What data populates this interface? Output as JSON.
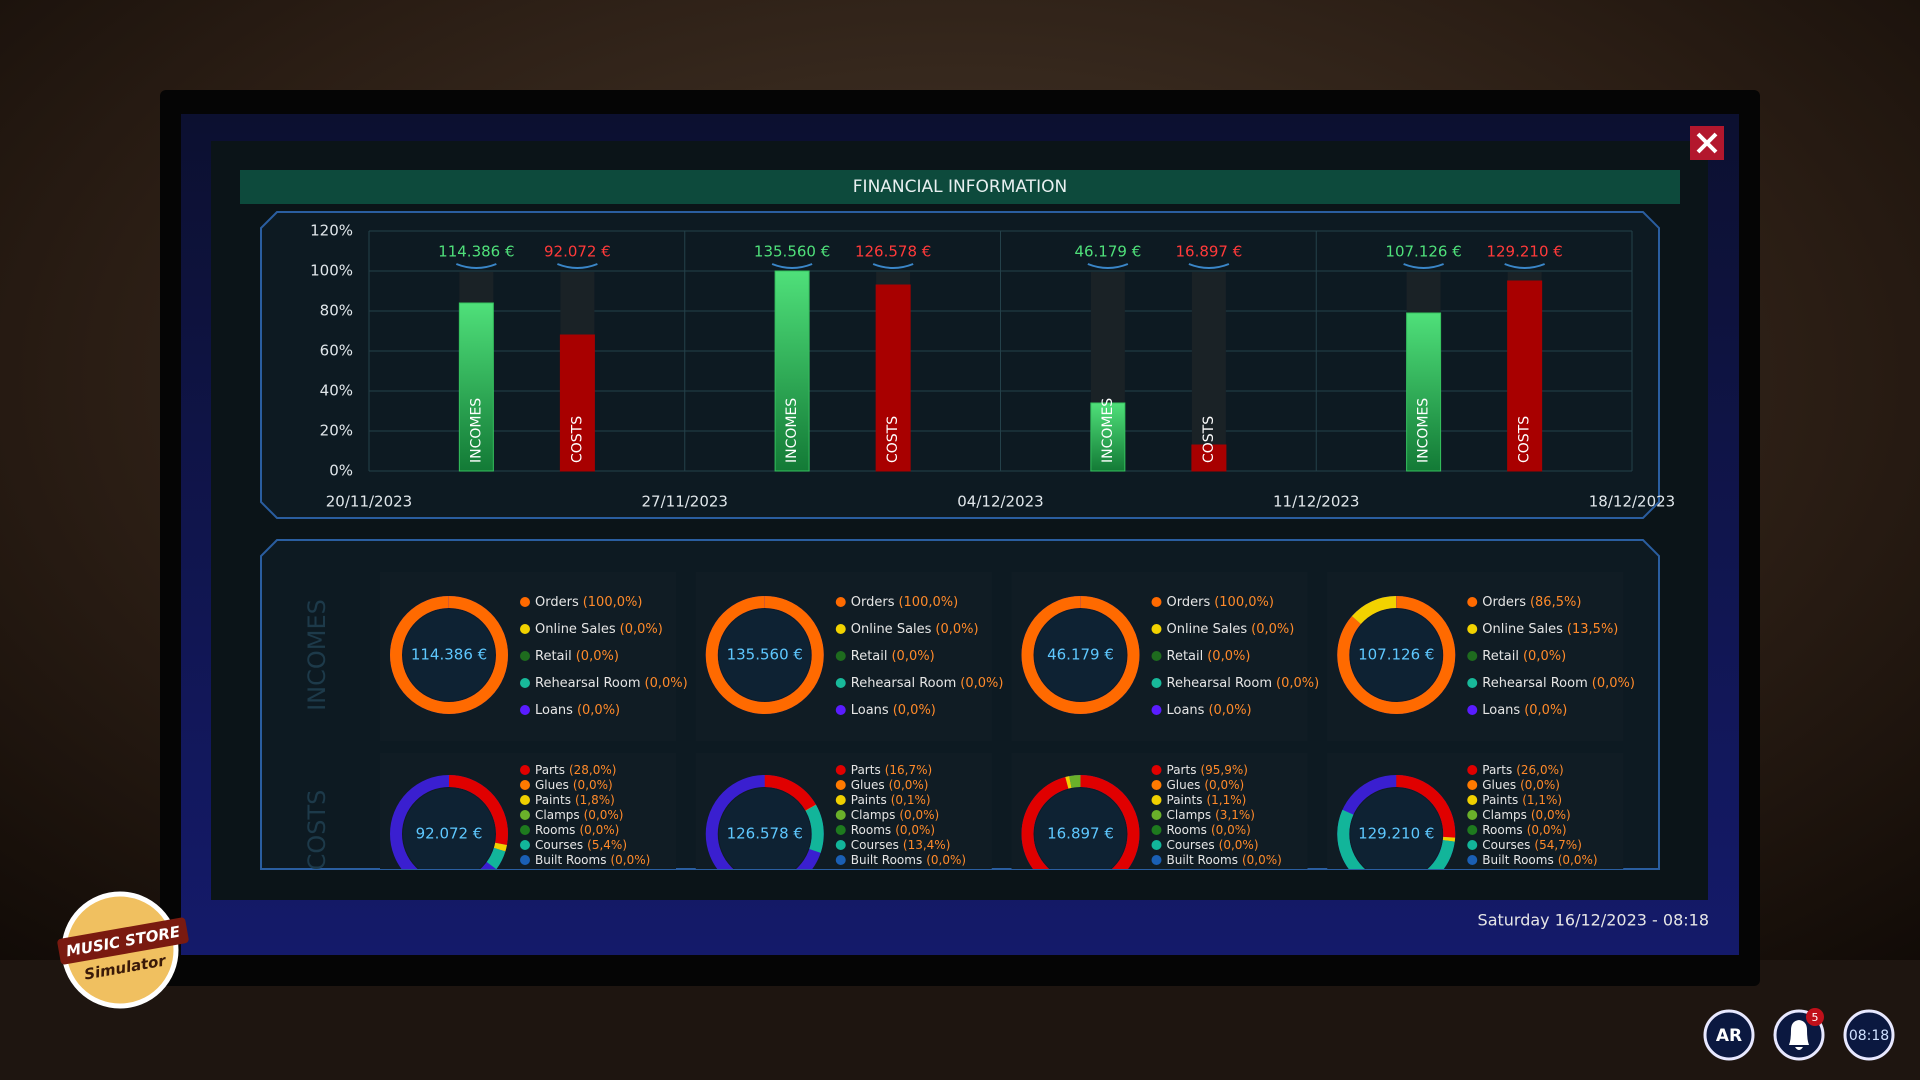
{
  "header": {
    "title": "FINANCIAL INFORMATION"
  },
  "bar_chart": {
    "ylim": [
      0,
      120
    ],
    "yticks": [
      {
        "value": 0,
        "label": "0%"
      },
      {
        "value": 20,
        "label": "20%"
      },
      {
        "value": 40,
        "label": "40%"
      },
      {
        "value": 60,
        "label": "60%"
      },
      {
        "value": 80,
        "label": "80%"
      },
      {
        "value": 100,
        "label": "100%"
      },
      {
        "value": 120,
        "label": "120%"
      }
    ],
    "dates": [
      "20/11/2023",
      "27/11/2023",
      "04/12/2023",
      "11/12/2023",
      "18/12/2023"
    ],
    "income_color": "#35c25e",
    "cost_color": "#a80000",
    "weeks": [
      {
        "incomes": {
          "label": "INCOMES",
          "amount": "114.386 €",
          "percent": 84
        },
        "costs": {
          "label": "COSTS",
          "amount": "92.072 €",
          "percent": 68
        }
      },
      {
        "incomes": {
          "label": "INCOMES",
          "amount": "135.560 €",
          "percent": 100
        },
        "costs": {
          "label": "COSTS",
          "amount": "126.578 €",
          "percent": 93
        }
      },
      {
        "incomes": {
          "label": "INCOMES",
          "amount": "46.179 €",
          "percent": 34
        },
        "costs": {
          "label": "COSTS",
          "amount": "16.897 €",
          "percent": 13
        }
      },
      {
        "incomes": {
          "label": "INCOMES",
          "amount": "107.126 €",
          "percent": 79
        },
        "costs": {
          "label": "COSTS",
          "amount": "129.210 €",
          "percent": 95
        }
      }
    ]
  },
  "panels": {
    "incomes_title": "INCOMES",
    "costs_title": "COSTS",
    "income_colors": [
      "#ff6a00",
      "#f2d200",
      "#1e6b1e",
      "#18b99a",
      "#5a1cff"
    ],
    "cost_colors": [
      "#e00000",
      "#ff7a00",
      "#f0d000",
      "#6ab02a",
      "#1e7a1e",
      "#12b59a",
      "#1a5fb4"
    ],
    "weeks": [
      {
        "incomes": {
          "total": "114.386 €",
          "items": [
            {
              "name": "Orders",
              "share": "(100,0%)",
              "value": 100.0
            },
            {
              "name": "Online Sales",
              "share": "(0,0%)",
              "value": 0.0
            },
            {
              "name": "Retail",
              "share": "(0,0%)",
              "value": 0.0
            },
            {
              "name": "Rehearsal Room",
              "share": "(0,0%)",
              "value": 0.0
            },
            {
              "name": "Loans",
              "share": "(0,0%)",
              "value": 0.0
            }
          ]
        },
        "costs": {
          "total": "92.072 €",
          "items": [
            {
              "name": "Parts",
              "share": "(28,0%)",
              "value": 28.0
            },
            {
              "name": "Glues",
              "share": "(0,0%)",
              "value": 0.0
            },
            {
              "name": "Paints",
              "share": "(1,8%)",
              "value": 1.8
            },
            {
              "name": "Clamps",
              "share": "(0,0%)",
              "value": 0.0
            },
            {
              "name": "Rooms",
              "share": "(0,0%)",
              "value": 0.0
            },
            {
              "name": "Courses",
              "share": "(5,4%)",
              "value": 5.4
            },
            {
              "name": "Built Rooms",
              "share": "(0,0%)",
              "value": 0.0
            }
          ]
        }
      },
      {
        "incomes": {
          "total": "135.560 €",
          "items": [
            {
              "name": "Orders",
              "share": "(100,0%)",
              "value": 100.0
            },
            {
              "name": "Online Sales",
              "share": "(0,0%)",
              "value": 0.0
            },
            {
              "name": "Retail",
              "share": "(0,0%)",
              "value": 0.0
            },
            {
              "name": "Rehearsal Room",
              "share": "(0,0%)",
              "value": 0.0
            },
            {
              "name": "Loans",
              "share": "(0,0%)",
              "value": 0.0
            }
          ]
        },
        "costs": {
          "total": "126.578 €",
          "items": [
            {
              "name": "Parts",
              "share": "(16,7%)",
              "value": 16.7
            },
            {
              "name": "Glues",
              "share": "(0,0%)",
              "value": 0.0
            },
            {
              "name": "Paints",
              "share": "(0,1%)",
              "value": 0.1
            },
            {
              "name": "Clamps",
              "share": "(0,0%)",
              "value": 0.0
            },
            {
              "name": "Rooms",
              "share": "(0,0%)",
              "value": 0.0
            },
            {
              "name": "Courses",
              "share": "(13,4%)",
              "value": 13.4
            },
            {
              "name": "Built Rooms",
              "share": "(0,0%)",
              "value": 0.0
            }
          ]
        }
      },
      {
        "incomes": {
          "total": "46.179 €",
          "items": [
            {
              "name": "Orders",
              "share": "(100,0%)",
              "value": 100.0
            },
            {
              "name": "Online Sales",
              "share": "(0,0%)",
              "value": 0.0
            },
            {
              "name": "Retail",
              "share": "(0,0%)",
              "value": 0.0
            },
            {
              "name": "Rehearsal Room",
              "share": "(0,0%)",
              "value": 0.0
            },
            {
              "name": "Loans",
              "share": "(0,0%)",
              "value": 0.0
            }
          ]
        },
        "costs": {
          "total": "16.897 €",
          "items": [
            {
              "name": "Parts",
              "share": "(95,9%)",
              "value": 95.9
            },
            {
              "name": "Glues",
              "share": "(0,0%)",
              "value": 0.0
            },
            {
              "name": "Paints",
              "share": "(1,1%)",
              "value": 1.1
            },
            {
              "name": "Clamps",
              "share": "(3,1%)",
              "value": 3.1
            },
            {
              "name": "Rooms",
              "share": "(0,0%)",
              "value": 0.0
            },
            {
              "name": "Courses",
              "share": "(0,0%)",
              "value": 0.0
            },
            {
              "name": "Built Rooms",
              "share": "(0,0%)",
              "value": 0.0
            }
          ]
        }
      },
      {
        "incomes": {
          "total": "107.126 €",
          "items": [
            {
              "name": "Orders",
              "share": "(86,5%)",
              "value": 86.5
            },
            {
              "name": "Online Sales",
              "share": "(13,5%)",
              "value": 13.5
            },
            {
              "name": "Retail",
              "share": "(0,0%)",
              "value": 0.0
            },
            {
              "name": "Rehearsal Room",
              "share": "(0,0%)",
              "value": 0.0
            },
            {
              "name": "Loans",
              "share": "(0,0%)",
              "value": 0.0
            }
          ]
        },
        "costs": {
          "total": "129.210 €",
          "items": [
            {
              "name": "Parts",
              "share": "(26,0%)",
              "value": 26.0
            },
            {
              "name": "Glues",
              "share": "(0,0%)",
              "value": 0.0
            },
            {
              "name": "Paints",
              "share": "(1,1%)",
              "value": 1.1
            },
            {
              "name": "Clamps",
              "share": "(0,0%)",
              "value": 0.0
            },
            {
              "name": "Rooms",
              "share": "(0,0%)",
              "value": 0.0
            },
            {
              "name": "Courses",
              "share": "(54,7%)",
              "value": 54.7
            },
            {
              "name": "Built Rooms",
              "share": "(0,0%)",
              "value": 0.0
            }
          ]
        }
      }
    ]
  },
  "status": {
    "datetime": "Saturday 16/12/2023 - 08:18"
  },
  "hud": {
    "ar": "AR",
    "badge": "5",
    "clock": "08:18"
  },
  "logo": {
    "line1": "MUSIC STORE",
    "line2": "Simulator"
  }
}
